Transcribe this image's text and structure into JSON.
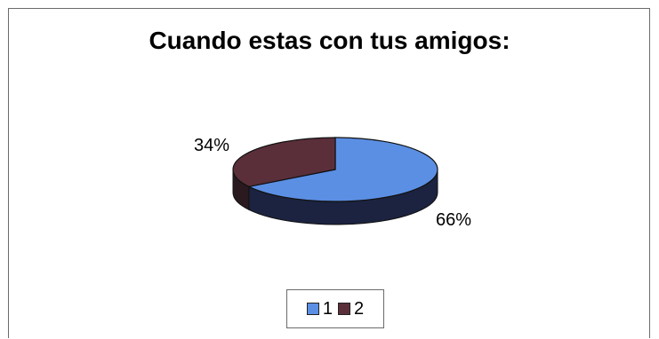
{
  "chart_data": {
    "type": "pie",
    "title": "Cuando estas con tus amigos:",
    "categories": [
      "1",
      "2"
    ],
    "values": [
      66,
      34
    ],
    "data_labels": [
      "66%",
      "34%"
    ],
    "colors": {
      "1": "#5b8fe4",
      "2": "#5a2f3a",
      "1_side": "#1c2340",
      "2_side": "#2a1a20"
    },
    "legend_placement": "bottom",
    "three_d": true
  }
}
